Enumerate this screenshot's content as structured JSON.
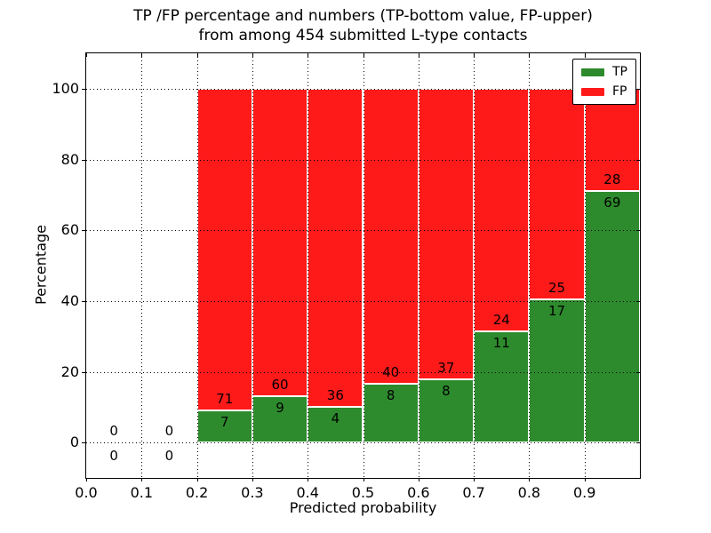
{
  "chart_data": {
    "type": "bar",
    "stacked": true,
    "normalized_to": 100,
    "title": "TP /FP percentage and numbers (TP-bottom value, FP-upper) from among 454 submitted L-type contacts",
    "title_lines": [
      "TP /FP percentage and numbers (TP-bottom value, FP-upper)",
      "from among 454 submitted L-type contacts"
    ],
    "xlabel": "Predicted probability",
    "ylabel": "Percentage",
    "total_contacts": 454,
    "xlim": [
      0.0,
      1.0
    ],
    "ylim": [
      -10,
      110
    ],
    "grid": true,
    "x_ticks": [
      {
        "value": 0.0,
        "label": "0.0"
      },
      {
        "value": 0.1,
        "label": "0.1"
      },
      {
        "value": 0.2,
        "label": "0.2"
      },
      {
        "value": 0.3,
        "label": "0.3"
      },
      {
        "value": 0.4,
        "label": "0.4"
      },
      {
        "value": 0.5,
        "label": "0.5"
      },
      {
        "value": 0.6,
        "label": "0.6"
      },
      {
        "value": 0.7,
        "label": "0.7"
      },
      {
        "value": 0.8,
        "label": "0.8"
      },
      {
        "value": 0.9,
        "label": "0.9"
      }
    ],
    "y_ticks": [
      {
        "value": 0,
        "label": "0"
      },
      {
        "value": 20,
        "label": "20"
      },
      {
        "value": 40,
        "label": "40"
      },
      {
        "value": 60,
        "label": "60"
      },
      {
        "value": 80,
        "label": "80"
      },
      {
        "value": 100,
        "label": "100"
      }
    ],
    "legend": {
      "position": "upper right",
      "entries": [
        {
          "label": "TP",
          "color": "#2d8b2d"
        },
        {
          "label": "FP",
          "color": "#ff1a1a"
        }
      ]
    },
    "colors": {
      "tp": "#2d8b2d",
      "fp": "#ff1a1a",
      "bar_edge": "#ffffff",
      "text": "#000000"
    },
    "bins": [
      {
        "x0": 0.0,
        "x1": 0.1,
        "tp": 0,
        "fp": 0
      },
      {
        "x0": 0.1,
        "x1": 0.2,
        "tp": 0,
        "fp": 0
      },
      {
        "x0": 0.2,
        "x1": 0.3,
        "tp": 7,
        "fp": 71
      },
      {
        "x0": 0.3,
        "x1": 0.4,
        "tp": 9,
        "fp": 60
      },
      {
        "x0": 0.4,
        "x1": 0.5,
        "tp": 4,
        "fp": 36
      },
      {
        "x0": 0.5,
        "x1": 0.6,
        "tp": 8,
        "fp": 40
      },
      {
        "x0": 0.6,
        "x1": 0.7,
        "tp": 8,
        "fp": 37
      },
      {
        "x0": 0.7,
        "x1": 0.8,
        "tp": 11,
        "fp": 24
      },
      {
        "x0": 0.8,
        "x1": 0.9,
        "tp": 17,
        "fp": 25
      },
      {
        "x0": 0.9,
        "x1": 1.0,
        "tp": 69,
        "fp": 28
      }
    ]
  }
}
